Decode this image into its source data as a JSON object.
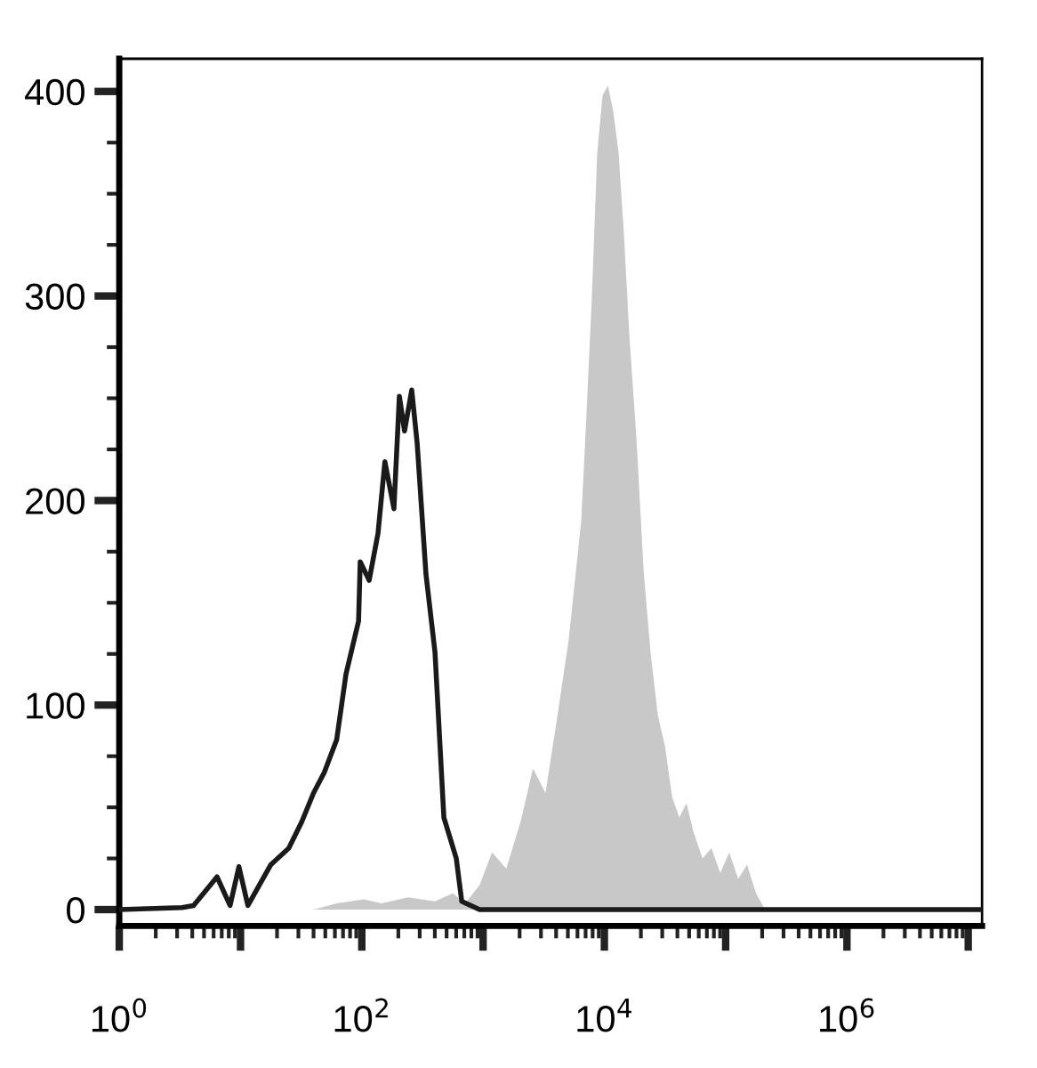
{
  "chart_data": {
    "type": "area",
    "series": [
      {
        "color": "#c8c8c8",
        "x": [
          3,
          40,
          62,
          104,
          145,
          241,
          401,
          562,
          713,
          935,
          1185,
          1553,
          2037,
          2580,
          3270,
          4010,
          5080,
          6440,
          7130,
          7890,
          8730,
          9660,
          10700,
          11850,
          13100,
          14500,
          16100,
          18400,
          21100,
          24100,
          27600,
          31600,
          36200,
          41500,
          47500,
          54300,
          64400,
          76200,
          90300,
          107000,
          127000,
          150000,
          178000,
          211000,
          13000000
        ],
        "values": [
          0,
          0,
          3,
          5,
          3,
          6,
          4,
          8,
          3,
          12,
          28,
          20,
          43,
          69,
          57,
          91,
          132,
          190,
          243,
          300,
          370,
          398,
          403,
          390,
          370,
          330,
          280,
          230,
          165,
          125,
          95,
          80,
          55,
          45,
          52,
          38,
          25,
          30,
          18,
          28,
          15,
          22,
          8,
          0,
          0
        ]
      },
      {
        "type": "line",
        "color": "#1a1a1a",
        "x": [
          1,
          3.3,
          4.1,
          6.4,
          8.2,
          9.7,
          11.5,
          17.8,
          25,
          32,
          40,
          49,
          62,
          74,
          94,
          97,
          115,
          136,
          155,
          184,
          204,
          225,
          258,
          286,
          338,
          401,
          475,
          601,
          667,
          935,
          1312,
          13000000
        ],
        "values": [
          0,
          1,
          2,
          16,
          2,
          21,
          2,
          22,
          30,
          43,
          57,
          67,
          83,
          115,
          141,
          170,
          161,
          184,
          219,
          196,
          251,
          234,
          254,
          228,
          164,
          126,
          45,
          25,
          4,
          0,
          0,
          0
        ]
      }
    ],
    "log": "x",
    "xlim": [
      1,
      13000000
    ],
    "xticks": [
      {
        "value": 1,
        "label": "10$^{0}$"
      },
      {
        "value": 10,
        "label": null
      },
      {
        "value": 100,
        "label": "10$^{2}$"
      },
      {
        "value": 1000,
        "label": null
      },
      {
        "value": 10000,
        "label": "10$^{4}$"
      },
      {
        "value": 100000,
        "label": null
      },
      {
        "value": 1000000,
        "label": "10$^{6}$"
      },
      {
        "value": 10000000,
        "label": null
      }
    ],
    "ylim": [
      -8,
      416
    ],
    "yticks": [
      0,
      100,
      200,
      300,
      400
    ],
    "grid": false,
    "legend": false
  }
}
